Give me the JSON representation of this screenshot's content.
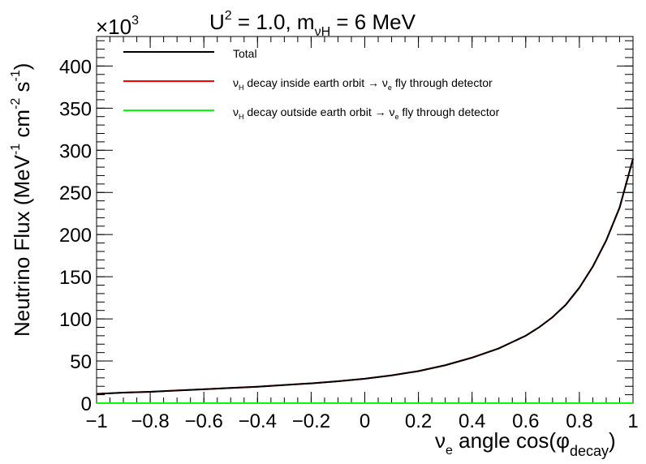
{
  "chart_data": {
    "type": "line",
    "title_parts": {
      "a": "U",
      "a_sup": "2",
      "b": " = 1.0, m",
      "b_sub": "νH",
      "c": " = 6 MeV"
    },
    "ylabel_parts": {
      "a": "Neutrino Flux (MeV",
      "sup1": "-1",
      "b": " cm",
      "sup2": "-2",
      "c": " s",
      "sup3": "-1",
      "d": ")"
    },
    "xlabel_parts": {
      "a": "ν",
      "a_sub": "e",
      "b": " angle cos(φ",
      "b_sub": "decay",
      "c": ")"
    },
    "y_multiplier": {
      "base": "×10",
      "exp": "3"
    },
    "xlim": [
      -1,
      1
    ],
    "ylim": [
      0,
      435
    ],
    "x_ticks": [
      -1,
      -0.8,
      -0.6,
      -0.4,
      -0.2,
      0,
      0.2,
      0.4,
      0.6,
      0.8,
      1
    ],
    "x_tick_labels": [
      "−1",
      "−0.8",
      "−0.6",
      "−0.4",
      "−0.2",
      "0",
      "0.2",
      "0.4",
      "0.6",
      "0.8",
      "1"
    ],
    "y_ticks": [
      0,
      50,
      100,
      150,
      200,
      250,
      300,
      350,
      400
    ],
    "y_tick_labels": [
      "0",
      "50",
      "100",
      "150",
      "200",
      "250",
      "300",
      "350",
      "400"
    ],
    "grid": false,
    "legend_position": "top",
    "legend": [
      {
        "key": "total",
        "color": "#000000",
        "text": "Total"
      },
      {
        "key": "inside",
        "color": "#ff0000",
        "p1": "ν",
        "p1_sub": "H",
        "p2": " decay inside earth orbit → ν",
        "p2_sub": "e",
        "p3": " fly through detector"
      },
      {
        "key": "outside",
        "color": "#00ff00",
        "p1": "ν",
        "p1_sub": "H",
        "p2": " decay outside earth orbit → ν",
        "p2_sub": "e",
        "p3": " fly through detector"
      }
    ],
    "series": [
      {
        "key": "inside",
        "color": "#ff0000",
        "x": [
          -1,
          -0.9,
          -0.8,
          -0.7,
          -0.6,
          -0.5,
          -0.4,
          -0.3,
          -0.2,
          -0.1,
          0,
          0.1,
          0.2,
          0.3,
          0.4,
          0.5,
          0.6,
          0.65,
          0.7,
          0.75,
          0.8,
          0.85,
          0.9,
          0.95,
          1.0
        ],
        "y": [
          11,
          12.5,
          13.5,
          15,
          16.5,
          18,
          19.5,
          21.5,
          23.5,
          26,
          29,
          33,
          38,
          45,
          54,
          65,
          80,
          90,
          102,
          117,
          137,
          162,
          193,
          232,
          290
        ]
      },
      {
        "key": "total",
        "color": "#000000",
        "x": [
          -1,
          -0.9,
          -0.8,
          -0.7,
          -0.6,
          -0.5,
          -0.4,
          -0.3,
          -0.2,
          -0.1,
          0,
          0.1,
          0.2,
          0.3,
          0.4,
          0.5,
          0.6,
          0.65,
          0.7,
          0.75,
          0.8,
          0.85,
          0.9,
          0.95,
          1.0
        ],
        "y": [
          11,
          12.5,
          13.5,
          15,
          16.5,
          18,
          19.5,
          21.5,
          23.5,
          26,
          29,
          33,
          38,
          45,
          54,
          65,
          80,
          90,
          102,
          117,
          137,
          162,
          193,
          232,
          290
        ]
      },
      {
        "key": "outside",
        "color": "#00ff00",
        "x": [
          -1,
          1
        ],
        "y": [
          0,
          0
        ]
      }
    ]
  }
}
